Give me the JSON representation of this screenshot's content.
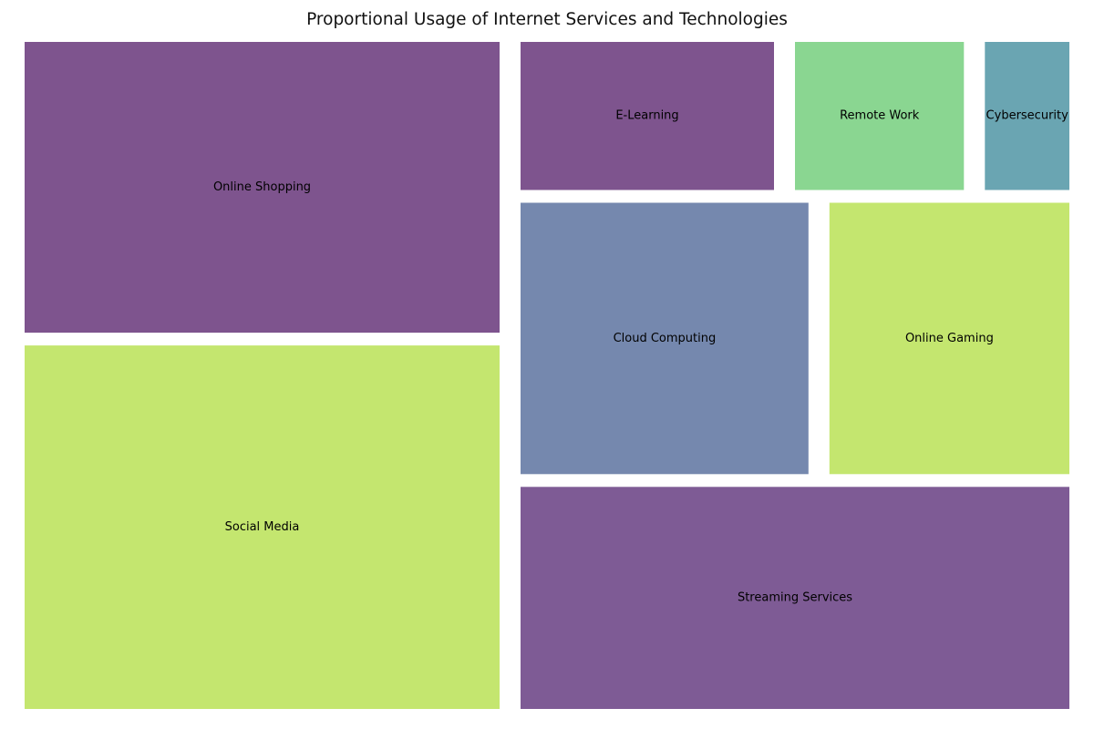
{
  "chart_data": {
    "type": "treemap",
    "title": "Proportional Usage of Internet Services and Technologies",
    "items": [
      {
        "label": "Online Shopping",
        "value": 20,
        "color": "#7e548e"
      },
      {
        "label": "Social Media",
        "value": 25,
        "color": "#c4e66f"
      },
      {
        "label": "E-Learning",
        "value": 6,
        "color": "#7e548e"
      },
      {
        "label": "Remote Work",
        "value": 4,
        "color": "#8ad691"
      },
      {
        "label": "Cybersecurity",
        "value": 2,
        "color": "#6aa5b2"
      },
      {
        "label": "Cloud Computing",
        "value": 12,
        "color": "#7588ae"
      },
      {
        "label": "Online Gaming",
        "value": 10,
        "color": "#c4e66f"
      },
      {
        "label": "Streaming Services",
        "value": 18,
        "color": "#7e5b95"
      }
    ]
  }
}
